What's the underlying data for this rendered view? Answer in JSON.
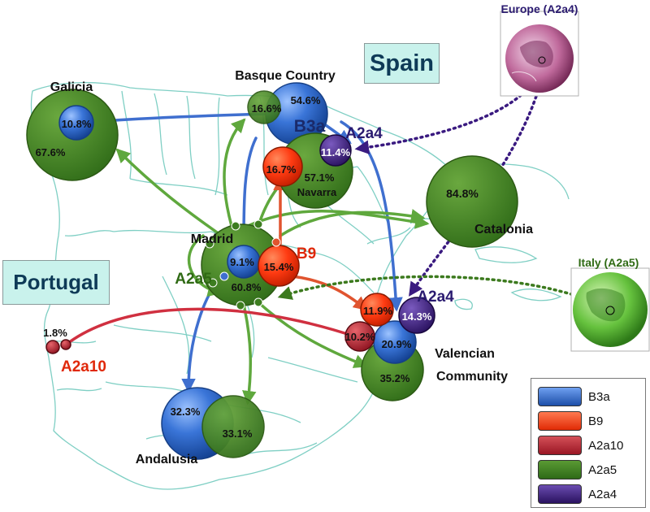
{
  "country_labels": {
    "spain": "Spain",
    "portugal": "Portugal"
  },
  "insets": {
    "europe": "Europe (A2a4)",
    "italy": "Italy (A2a5)"
  },
  "regions": {
    "galicia": "Galicia",
    "basque": "Basque Country",
    "navarra": "Navarra",
    "madrid": "Madrid",
    "catalonia": "Catalonia",
    "valencian_1": "Valencian",
    "valencian_2": "Community",
    "andalusia": "Andalusia"
  },
  "values": {
    "galicia_b3a": "10.8%",
    "galicia_a2a5": "67.6%",
    "basque_a2a5": "16.6%",
    "basque_b3a": "54.6%",
    "navarra_a2a4": "11.4%",
    "navarra_b9": "16.7%",
    "navarra_a2a5": "57.1%",
    "catalonia_a2a5": "84.8%",
    "madrid_b3a": "9.1%",
    "madrid_b9": "15.4%",
    "madrid_a2a5": "60.8%",
    "valencia_b9": "11.9%",
    "valencia_a2a4": "14.3%",
    "valencia_a2a10": "10.2%",
    "valencia_b3a": "20.9%",
    "valencia_a2a5": "35.2%",
    "andalusia_b3a": "32.3%",
    "andalusia_a2a5": "33.1%",
    "portugal_a2a10": "1.8%"
  },
  "clade_labels": {
    "b3a": "B3a",
    "a2a4_north": "A2a4",
    "b9": "B9",
    "a2a5": "A2a5",
    "a2a4_east": "A2a4",
    "a2a10": "A2a10"
  },
  "legend": [
    {
      "label": "B3a",
      "color": "#2a63c6"
    },
    {
      "label": "B9",
      "color": "#ff3c14"
    },
    {
      "label": "A2a10",
      "color": "#c3242f"
    },
    {
      "label": "A2a5",
      "color": "#3d7d20"
    },
    {
      "label": "A2a4",
      "color": "#3f2076"
    }
  ]
}
